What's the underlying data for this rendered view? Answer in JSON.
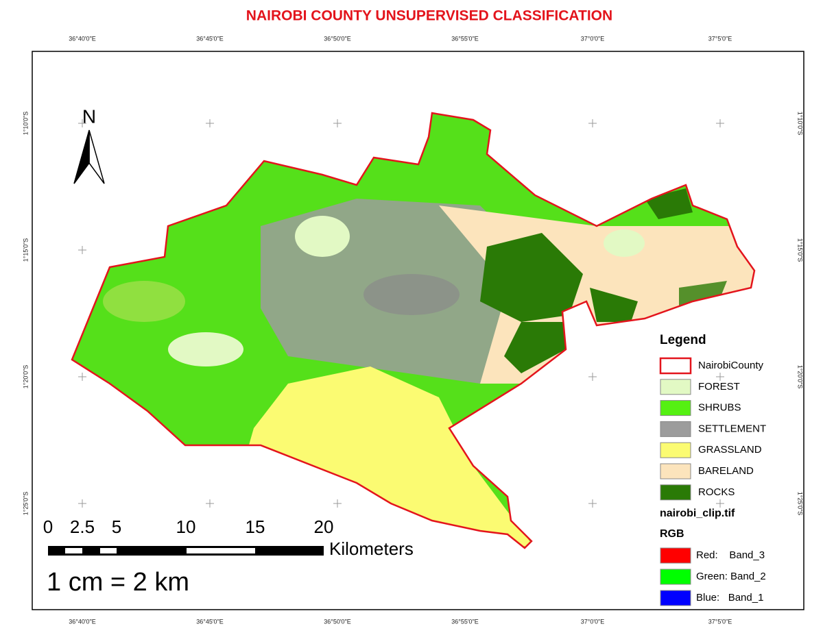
{
  "title": "NAIROBI COUNTY UNSUPERVISED CLASSIFICATION",
  "graticule": {
    "top": [
      "36°40'0\"E",
      "36°45'0\"E",
      "36°50'0\"E",
      "36°55'0\"E",
      "37°0'0\"E",
      "37°5'0\"E"
    ],
    "bottom": [
      "36°40'0\"E",
      "36°45'0\"E",
      "36°50'0\"E",
      "36°55'0\"E",
      "37°0'0\"E",
      "37°5'0\"E"
    ],
    "left": [
      "1°10'0\"S",
      "1°15'0\"S",
      "1°20'0\"S",
      "1°25'0\"S"
    ],
    "right": [
      "1°10'0\"S",
      "1°15'0\"S",
      "1°20'0\"S",
      "1°25'0\"S"
    ]
  },
  "north": "N",
  "scale_bar": {
    "labels": [
      "0",
      "2.5",
      "5",
      "10",
      "15",
      "20"
    ],
    "unit": "Kilometers",
    "ratio": "1 cm = 2 km"
  },
  "legend": {
    "title": "Legend",
    "items": [
      {
        "label": "NairobiCounty",
        "outline": "#e3141c"
      },
      {
        "label": "FOREST",
        "color": "#e2f9c4"
      },
      {
        "label": "SHRUBS",
        "color": "#55f012"
      },
      {
        "label": "SETTLEMENT",
        "color": "#9c9c9c"
      },
      {
        "label": "GRASSLAND",
        "color": "#fbfb72"
      },
      {
        "label": "BARELAND",
        "color": "#fce4bc"
      },
      {
        "label": "ROCKS",
        "color": "#2a7a06"
      }
    ]
  },
  "raster": {
    "name": "nairobi_clip.tif",
    "composite": "RGB",
    "bands": [
      {
        "label": "Red:    Band_3",
        "color": "#ff0000"
      },
      {
        "label": "Green: Band_2",
        "color": "#00ff00"
      },
      {
        "label": "Blue:   Band_1",
        "color": "#0000ff"
      }
    ]
  }
}
